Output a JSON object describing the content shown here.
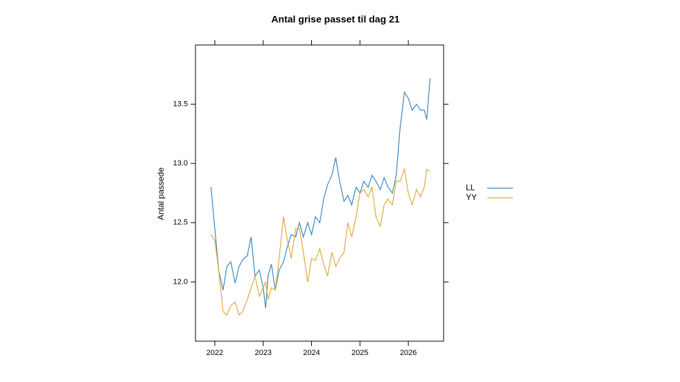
{
  "chart_data": {
    "type": "line",
    "title": "Antal grise passet til dag 21",
    "y_label": "Antal passede",
    "x": [
      2021.92,
      2022.0,
      2022.08,
      2022.17,
      2022.25,
      2022.33,
      2022.42,
      2022.5,
      2022.58,
      2022.67,
      2022.75,
      2022.83,
      2022.92,
      2023.0,
      2023.05,
      2023.1,
      2023.17,
      2023.25,
      2023.33,
      2023.42,
      2023.5,
      2023.58,
      2023.67,
      2023.75,
      2023.83,
      2023.92,
      2024.0,
      2024.08,
      2024.17,
      2024.25,
      2024.33,
      2024.42,
      2024.5,
      2024.58,
      2024.67,
      2024.75,
      2024.83,
      2024.92,
      2025.0,
      2025.08,
      2025.17,
      2025.25,
      2025.33,
      2025.42,
      2025.5,
      2025.58,
      2025.67,
      2025.75,
      2025.83,
      2025.92,
      2026.0,
      2026.08,
      2026.17,
      2026.25,
      2026.33,
      2026.38,
      2026.45
    ],
    "series": [
      {
        "name": "LL",
        "color": "#3a87c2",
        "values": [
          12.8,
          12.45,
          12.1,
          11.93,
          12.13,
          12.17,
          11.99,
          12.13,
          12.19,
          12.22,
          12.38,
          12.05,
          12.1,
          11.95,
          11.78,
          12.05,
          12.15,
          11.93,
          12.1,
          12.17,
          12.3,
          12.4,
          12.38,
          12.5,
          12.38,
          12.5,
          12.4,
          12.55,
          12.5,
          12.7,
          12.82,
          12.9,
          13.05,
          12.85,
          12.68,
          12.73,
          12.65,
          12.8,
          12.75,
          12.85,
          12.8,
          12.9,
          12.85,
          12.78,
          12.88,
          12.8,
          12.75,
          12.9,
          13.3,
          13.6,
          13.55,
          13.45,
          13.5,
          13.45,
          13.45,
          13.37,
          13.72
        ]
      },
      {
        "name": "YY",
        "color": "#e3a83a",
        "values": [
          12.4,
          12.35,
          12.1,
          11.75,
          11.72,
          11.8,
          11.83,
          11.72,
          11.75,
          11.85,
          11.95,
          12.05,
          11.88,
          11.95,
          12.0,
          11.85,
          11.95,
          11.93,
          12.2,
          12.55,
          12.35,
          12.2,
          12.45,
          12.45,
          12.25,
          12.0,
          12.2,
          12.18,
          12.28,
          12.15,
          12.05,
          12.25,
          12.13,
          12.2,
          12.25,
          12.5,
          12.38,
          12.55,
          12.75,
          12.78,
          12.72,
          12.8,
          12.55,
          12.47,
          12.65,
          12.7,
          12.65,
          12.85,
          12.85,
          12.95,
          12.75,
          12.65,
          12.78,
          12.72,
          12.8,
          12.95,
          12.93
        ]
      }
    ],
    "xlim": [
      2021.6,
      2026.73
    ],
    "xticks": [
      2022,
      2023,
      2024,
      2025,
      2026
    ],
    "ylim": [
      11.5,
      14.0
    ],
    "yticks": [
      {
        "value": 12.0,
        "label": "12.0"
      },
      12.5,
      {
        "value": 13.0,
        "label": "13.0"
      },
      13.5
    ]
  }
}
